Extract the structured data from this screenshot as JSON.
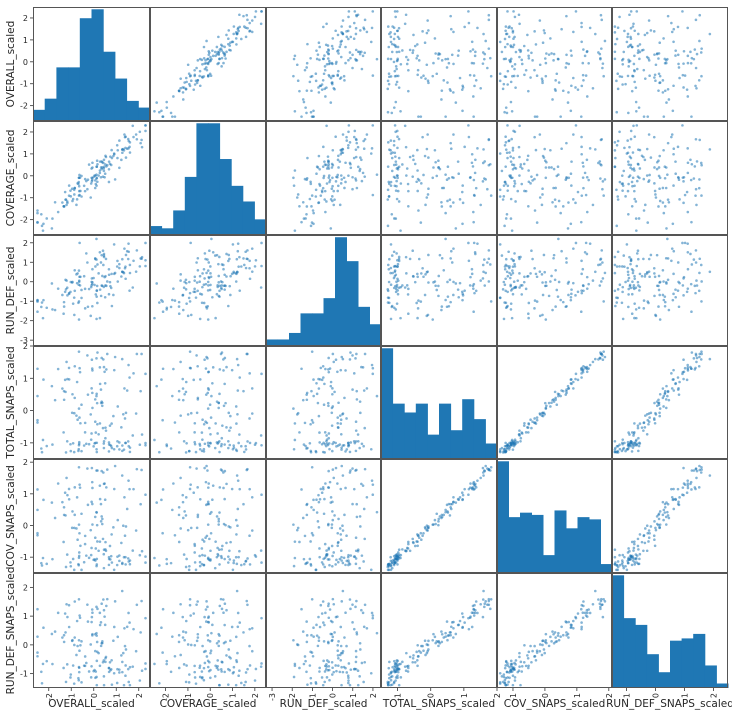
{
  "chart_data": {
    "type": "scatter_matrix",
    "variables": [
      "OVERALL_scaled",
      "COVERAGE_scaled",
      "RUN_DEF_scaled",
      "TOTAL_SNAPS_scaled",
      "COV_SNAPS_scaled",
      "RUN_DEF_SNAPS_scaled"
    ],
    "ticks": [
      [
        "-2",
        "-1",
        "0",
        "1",
        "2"
      ],
      [
        "-2",
        "-1",
        "0",
        "1",
        "2"
      ],
      [
        "-3",
        "-2",
        "-1",
        "0",
        "1",
        "2"
      ],
      [
        "-1",
        "0",
        "1",
        "2"
      ],
      [
        "-1",
        "0",
        "1",
        "2"
      ],
      [
        "-1",
        "0",
        "1",
        "2"
      ]
    ],
    "tick_values": [
      [
        -2,
        -1,
        0,
        1,
        2
      ],
      [
        -2,
        -1,
        0,
        1,
        2
      ],
      [
        -3,
        -2,
        -1,
        0,
        1,
        2
      ],
      [
        -1,
        0,
        1,
        2
      ],
      [
        -1,
        0,
        1,
        2
      ],
      [
        -1,
        0,
        1,
        2
      ]
    ],
    "ranges": [
      [
        -2.7,
        2.5
      ],
      [
        -2.7,
        2.5
      ],
      [
        -3.3,
        2.4
      ],
      [
        -1.5,
        2.0
      ],
      [
        -1.5,
        2.1
      ],
      [
        -1.5,
        2.5
      ]
    ],
    "histograms": [
      [
        0.1,
        0.2,
        0.48,
        0.48,
        0.92,
        1.0,
        0.62,
        0.38,
        0.18,
        0.12
      ],
      [
        0.08,
        0.06,
        0.22,
        0.52,
        1.0,
        1.0,
        0.68,
        0.44,
        0.3,
        0.14
      ],
      [
        0.06,
        0.06,
        0.12,
        0.3,
        0.3,
        0.44,
        1.0,
        0.78,
        0.36,
        0.2
      ],
      [
        1.0,
        0.5,
        0.42,
        0.5,
        0.22,
        0.5,
        0.26,
        0.54,
        0.36,
        0.14
      ],
      [
        1.0,
        0.5,
        0.54,
        0.52,
        0.16,
        0.56,
        0.4,
        0.5,
        0.48,
        0.08
      ],
      [
        1.0,
        0.62,
        0.56,
        0.3,
        0.14,
        0.42,
        0.44,
        0.48,
        0.2,
        0.04
      ]
    ],
    "n_points": 150,
    "point_color": "#1f77b4",
    "bar_color": "#1f77b4"
  }
}
